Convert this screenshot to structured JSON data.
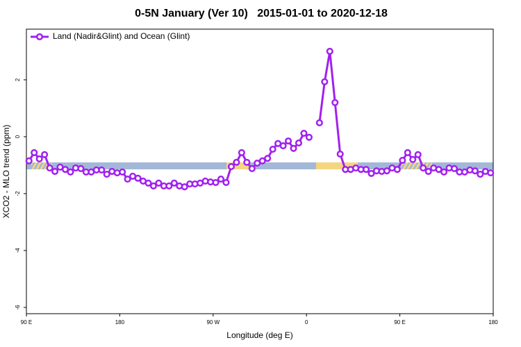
{
  "chart_data": {
    "type": "line",
    "title": "0-5N January (Ver 10)   2015-01-01 to 2020-12-18",
    "xlabel": "Longitude (deg E)",
    "ylabel": "XCO2 - MLO trend (ppm)",
    "xlim": [
      90,
      540
    ],
    "ylim": [
      -6.22,
      3.78
    ],
    "xticks": [
      {
        "value": 90,
        "label": "90 E"
      },
      {
        "value": 180,
        "label": "180"
      },
      {
        "value": 270,
        "label": "90 W"
      },
      {
        "value": 360,
        "label": "0"
      },
      {
        "value": 450,
        "label": "90 E"
      },
      {
        "value": 540,
        "label": "180"
      }
    ],
    "yticks": [
      -6,
      -4,
      -2,
      0,
      2
    ],
    "legend": "top-left",
    "x": [
      92.5,
      97.5,
      102.5,
      107.5,
      112.5,
      117.5,
      122.5,
      127.5,
      132.5,
      137.5,
      142.5,
      147.5,
      152.5,
      157.5,
      162.5,
      167.5,
      172.5,
      177.5,
      182.5,
      187.5,
      192.5,
      197.5,
      202.5,
      207.5,
      212.5,
      217.5,
      222.5,
      227.5,
      232.5,
      237.5,
      242.5,
      247.5,
      252.5,
      257.5,
      262.5,
      267.5,
      272.5,
      277.5,
      282.5,
      287.5,
      292.5,
      297.5,
      302.5,
      307.5,
      312.5,
      317.5,
      322.5,
      327.5,
      332.5,
      337.5,
      342.5,
      347.5,
      352.5,
      357.5,
      362.5,
      367.5,
      372.5,
      377.5,
      382.5,
      387.5,
      392.5,
      397.5,
      402.5,
      407.5,
      412.5,
      417.5,
      422.5,
      427.5,
      432.5,
      437.5,
      442.5,
      447.5,
      452.5,
      457.5,
      462.5,
      467.5,
      472.5,
      477.5,
      482.5,
      487.5,
      492.5,
      497.5,
      502.5,
      507.5,
      512.5,
      517.5,
      522.5,
      527.5,
      532.5,
      537.5
    ],
    "series": [
      {
        "name": "Land (Nadir&Glint) and Ocean (Glint)",
        "color": "#a020f0",
        "values": [
          -0.85,
          -0.56,
          -0.78,
          -0.63,
          -1.1,
          -1.22,
          -1.07,
          -1.15,
          -1.24,
          -1.1,
          -1.12,
          -1.24,
          -1.24,
          -1.17,
          -1.17,
          -1.32,
          -1.22,
          -1.27,
          -1.24,
          -1.49,
          -1.39,
          -1.46,
          -1.56,
          -1.63,
          -1.73,
          -1.63,
          -1.73,
          -1.73,
          -1.63,
          -1.73,
          -1.76,
          -1.66,
          -1.66,
          -1.63,
          -1.56,
          -1.59,
          -1.61,
          -1.49,
          -1.61,
          -1.05,
          -0.9,
          -0.56,
          -0.9,
          -1.12,
          -0.93,
          -0.85,
          -0.76,
          -0.44,
          -0.24,
          -0.32,
          -0.15,
          -0.41,
          -0.22,
          0.12,
          -0.02,
          null,
          0.49,
          1.93,
          3.0,
          1.2,
          -0.61,
          -1.15,
          -1.15,
          -1.1,
          -1.15,
          -1.15,
          -1.29,
          -1.2,
          -1.22,
          -1.2,
          -1.1,
          -1.15,
          -0.83,
          -0.56,
          -0.8,
          -0.63,
          -1.1,
          -1.22,
          -1.1,
          -1.15,
          -1.24,
          -1.1,
          -1.12,
          -1.24,
          -1.24,
          -1.17,
          -1.2,
          -1.32,
          -1.22,
          -1.27
        ]
      }
    ]
  }
}
